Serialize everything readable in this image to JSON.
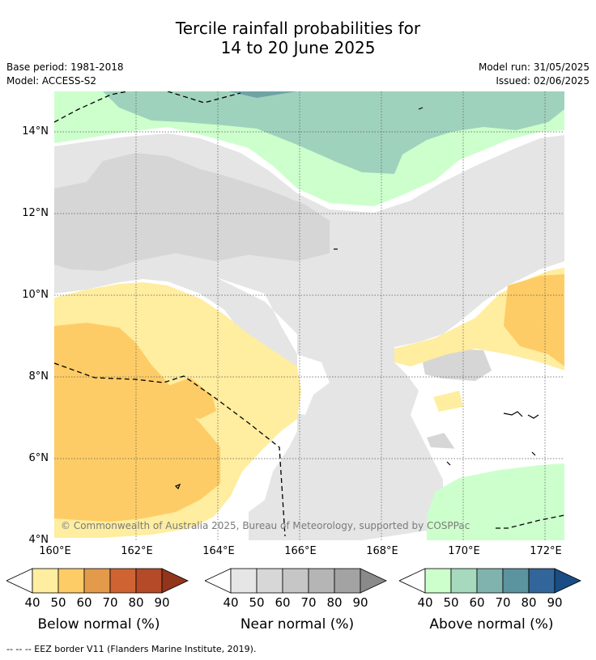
{
  "title": {
    "line1": "Tercile rainfall probabilities for",
    "line2": "14 to 20 June 2025"
  },
  "meta": {
    "base_period": "Base period: 1981-2018",
    "model": "Model: ACCESS-S2",
    "model_run": "Model run: 31/05/2025",
    "issued": "Issued: 02/06/2025"
  },
  "axes": {
    "lat_ticks": [
      "14°N",
      "12°N",
      "10°N",
      "8°N",
      "6°N",
      "4°N"
    ],
    "lon_ticks": [
      "160°E",
      "162°E",
      "164°E",
      "166°E",
      "168°E",
      "170°E",
      "172°E"
    ]
  },
  "copyright": "© Commonwealth of Australia 2025, Bureau of Meteorology, supported by COSPPac",
  "legends": [
    {
      "label": "Below normal (%)",
      "ticks": [
        "40",
        "50",
        "60",
        "70",
        "80",
        "90"
      ],
      "colors": [
        "#ffeda0",
        "#fecc66",
        "#e39a4b",
        "#d06332",
        "#b54a28",
        "#93341c"
      ]
    },
    {
      "label": "Near normal (%)",
      "ticks": [
        "40",
        "50",
        "60",
        "70",
        "80",
        "90"
      ],
      "colors": [
        "#e6e6e6",
        "#d7d7d7",
        "#c6c6c6",
        "#b5b5b5",
        "#a3a3a3",
        "#8a8a8a"
      ]
    },
    {
      "label": "Above normal (%)",
      "ticks": [
        "40",
        "50",
        "60",
        "70",
        "80",
        "90"
      ],
      "colors": [
        "#ccffcc",
        "#a6d9bd",
        "#80b3ad",
        "#5b939e",
        "#32669a",
        "#1a4c86"
      ]
    }
  ],
  "footnote": "--  --  -- EEZ border V11 (Flanders Marine Institute, 2019)."
}
